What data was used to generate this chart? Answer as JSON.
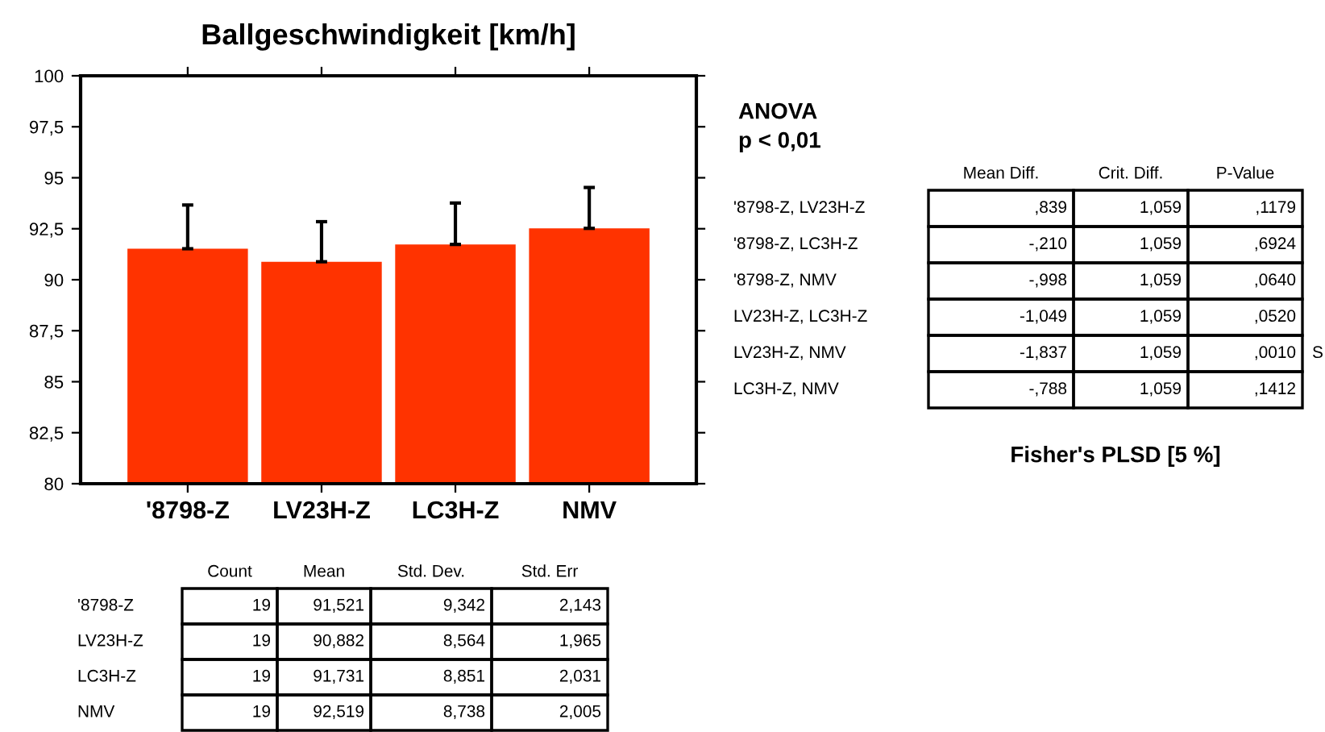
{
  "chart_data": [
    {
      "type": "bar",
      "title": "Ballgeschwindigkeit [km/h]",
      "categories": [
        "'8798-Z",
        "LV23H-Z",
        "LC3H-Z",
        "NMV"
      ],
      "series": [
        {
          "color": "#ff3300",
          "values": [
            91.521,
            90.882,
            91.731,
            92.519
          ],
          "errors": [
            [
              91.521,
              93.664
            ],
            [
              90.882,
              92.847
            ],
            [
              91.731,
              93.762
            ],
            [
              92.519,
              94.524
            ]
          ]
        }
      ],
      "ylim": [
        80,
        100
      ],
      "yticks": [
        80,
        {
          "value": 82.5,
          "label": "82,5"
        },
        85,
        {
          "value": 87.5,
          "label": "87,5"
        },
        90,
        {
          "value": 92.5,
          "label": "92,5"
        },
        95,
        {
          "value": 97.5,
          "label": "97,5"
        },
        100
      ],
      "grid": false,
      "legend": false
    },
    {
      "type": "other",
      "title": "ANOVA",
      "subtitle": "p < 0,01",
      "categories": [
        "Mean Diff.",
        "Crit. Diff.",
        "P-Value"
      ],
      "y_categories": [
        "'8798-Z, LV23H-Z",
        "'8798-Z, LC3H-Z",
        "'8798-Z, NMV",
        "LV23H-Z, LC3H-Z",
        "LV23H-Z, NMV",
        "LC3H-Z, NMV"
      ],
      "cell_labels": [
        [
          ",839",
          "1,059",
          ",1179"
        ],
        [
          "-,210",
          "1,059",
          ",6924"
        ],
        [
          "-,998",
          "1,059",
          ",0640"
        ],
        [
          "-1,049",
          "1,059",
          ",0520"
        ],
        [
          "-1,837",
          "1,059",
          ",0010"
        ],
        [
          "-,788",
          "1,059",
          ",1412"
        ]
      ],
      "annotations": [
        {
          "text": "S",
          "x": "P-Value",
          "y": "LV23H-Z, NMV"
        },
        "Fisher's PLSD [5 %]"
      ]
    },
    {
      "type": "other",
      "categories": [
        "Count",
        "Mean",
        "Std. Dev.",
        "Std. Err"
      ],
      "y_categories": [
        "'8798-Z",
        "LV23H-Z",
        "LC3H-Z",
        "NMV"
      ],
      "cell_labels": [
        [
          "19",
          "91,521",
          "9,342",
          "2,143"
        ],
        [
          "19",
          "90,882",
          "8,564",
          "1,965"
        ],
        [
          "19",
          "91,731",
          "8,851",
          "2,031"
        ],
        [
          "19",
          "92,519",
          "8,738",
          "2,005"
        ]
      ]
    }
  ]
}
